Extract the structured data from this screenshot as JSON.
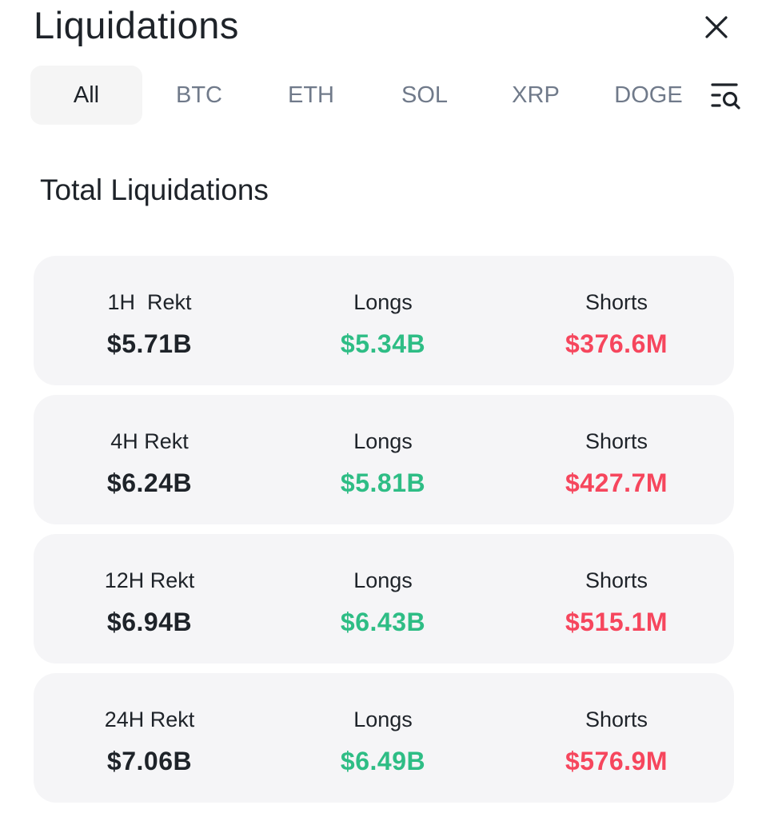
{
  "header": {
    "title": "Liquidations",
    "close_icon": "close-icon"
  },
  "tabs": [
    {
      "label": "All",
      "active": true
    },
    {
      "label": "BTC",
      "active": false
    },
    {
      "label": "ETH",
      "active": false
    },
    {
      "label": "SOL",
      "active": false
    },
    {
      "label": "XRP",
      "active": false
    },
    {
      "label": "DOGE",
      "active": false
    }
  ],
  "search_icon": "list-search-icon",
  "section": {
    "title": "Total Liquidations"
  },
  "cards": [
    {
      "rekt_label": "1H  Rekt",
      "rekt_value": "$5.71B",
      "longs_label": "Longs",
      "longs_value": "$5.34B",
      "shorts_label": "Shorts",
      "shorts_value": "$376.6M"
    },
    {
      "rekt_label": "4H Rekt",
      "rekt_value": "$6.24B",
      "longs_label": "Longs",
      "longs_value": "$5.81B",
      "shorts_label": "Shorts",
      "shorts_value": "$427.7M"
    },
    {
      "rekt_label": "12H Rekt",
      "rekt_value": "$6.94B",
      "longs_label": "Longs",
      "longs_value": "$6.43B",
      "shorts_label": "Shorts",
      "shorts_value": "$515.1M"
    },
    {
      "rekt_label": "24H Rekt",
      "rekt_value": "$7.06B",
      "longs_label": "Longs",
      "longs_value": "$6.49B",
      "shorts_label": "Shorts",
      "shorts_value": "$576.9M"
    }
  ],
  "colors": {
    "long": "#2ebd85",
    "short": "#f6465d",
    "text": "#1e2329",
    "muted": "#707a8a",
    "card_bg": "#f5f5f7"
  }
}
